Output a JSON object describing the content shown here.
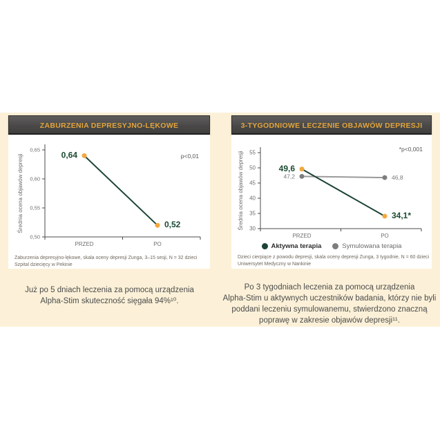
{
  "colors": {
    "band_background": "#fcf1d8",
    "header_background": "#4a4948",
    "header_text": "#e2a43c",
    "accent_green": "#1c4435",
    "accent_gold": "#f3a83d",
    "gray_series": "#7d7d7d"
  },
  "captions": {
    "left": [
      "Już po 5 dniach leczenia za pomocą urządzenia",
      "Alpha-Stim skuteczność sięgała 94%¹⁰."
    ],
    "right": [
      "Po 3 tygodniach leczenia za pomocą urządzenia",
      "Alpha-Stim u aktywnych uczestników badania, którzy nie byli",
      "poddani leczeniu symulowanemu, stwierdzono znaczną",
      "poprawę w zakresie objawów depresji¹¹."
    ]
  },
  "chart_data": [
    {
      "type": "line",
      "title": "ZABURZENIA DEPRESYJNO-LĘKOWE",
      "ylabel": "Średnia ocena objawów depresji",
      "ylim": [
        0.5,
        0.65
      ],
      "yticks": [
        {
          "v": 0.65,
          "label": "0,65"
        },
        {
          "v": 0.6,
          "label": "0,60"
        },
        {
          "v": 0.55,
          "label": "0,55"
        },
        {
          "v": 0.5,
          "label": "0,50"
        }
      ],
      "categories": [
        "PRZED",
        "PO"
      ],
      "annotation": "p<0,01",
      "series": [
        {
          "name": "",
          "values": [
            0.64,
            0.52
          ],
          "point_labels": [
            "0,64",
            "0,52"
          ],
          "label_sides": [
            "left",
            "right"
          ],
          "line_color": "#1c4435",
          "point_color": "#f3a83d",
          "label_color": "#1a4a32",
          "label_bold": true,
          "label_size": 12
        }
      ],
      "footnotes": [
        "Zaburzenia depresyjno-lękowe, skala oceny depresji Zunga, 3–15 sesji, N = 32 dzieci",
        "Szpital dziecięcy w Pekinie"
      ]
    },
    {
      "type": "line",
      "title": "3-TYGODNIOWE LECZENIE OBJAWÓW DEPRESJI",
      "ylabel": "Średnia ocena objawów depresji",
      "ylim": [
        30,
        55
      ],
      "yticks": [
        {
          "v": 55,
          "label": "55"
        },
        {
          "v": 50,
          "label": "50"
        },
        {
          "v": 45,
          "label": "45"
        },
        {
          "v": 40,
          "label": "40"
        },
        {
          "v": 35,
          "label": "35"
        },
        {
          "v": 30,
          "label": "30"
        }
      ],
      "categories": [
        "PRZED",
        "PO"
      ],
      "annotation": "*p<0,001",
      "series": [
        {
          "name": "Aktywna terapia",
          "values": [
            49.6,
            34.1
          ],
          "point_labels": [
            "49,6",
            "34,1*"
          ],
          "label_sides": [
            "left",
            "right"
          ],
          "line_color": "#1c4435",
          "point_color": "#f3a83d",
          "label_color": "#1a4a32",
          "label_bold": true,
          "label_size": 12
        },
        {
          "name": "Symulowana terapia",
          "values": [
            47.2,
            46.8
          ],
          "point_labels": [
            "47,2",
            "46,8"
          ],
          "label_sides": [
            "left",
            "right"
          ],
          "line_color": "#9a9a9a",
          "point_color": "#7d7d7d",
          "label_color": "#787878",
          "label_bold": false,
          "label_size": 8.5
        }
      ],
      "legend": [
        {
          "label": "Aktywna terapia",
          "color": "#1c4435",
          "bold": true
        },
        {
          "label": "Symulowana terapia",
          "color": "#7d7d7d",
          "bold": false
        }
      ],
      "footnotes": [
        "Dzieci cierpiące z powodu depresji, skala oceny depresji Zunga, 3 tygodnie, N = 60 dzieci",
        "Uniwersytet Medyczny w Nankinie"
      ]
    }
  ]
}
